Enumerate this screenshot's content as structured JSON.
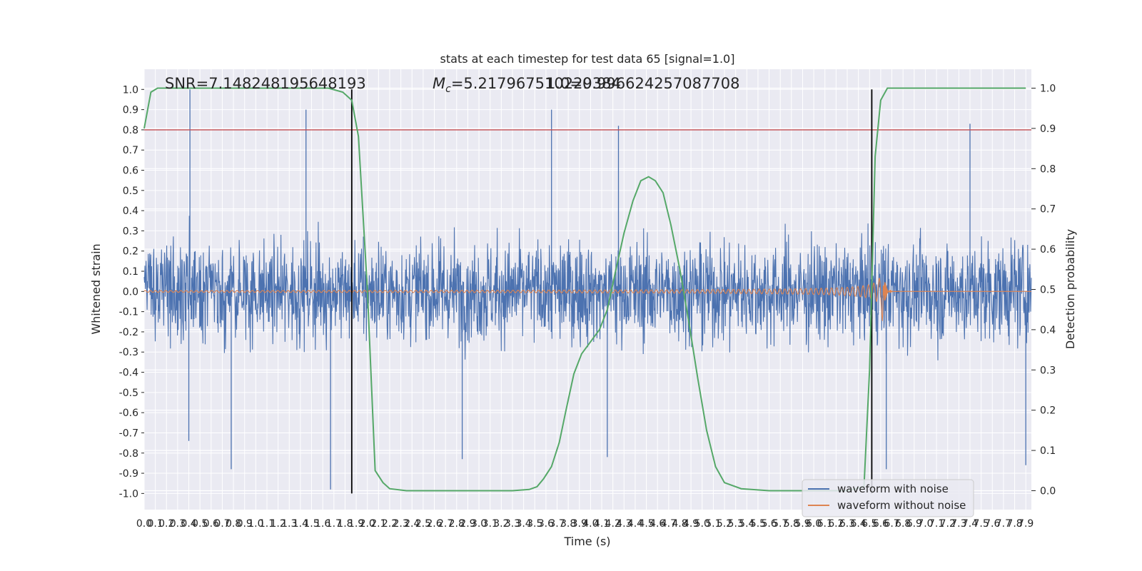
{
  "chart_data": {
    "type": "line",
    "title": "stats at each timestep for test data 65 [signal=1.0]",
    "annotations": {
      "snr": "SNR=7.148248195648193",
      "mc": "M",
      "mc_sub": "c",
      "mc_rest": "=5.217967510229384",
      "overlap": "1.0=0.996624257087708"
    },
    "xlabel": "Time (s)",
    "ylabel_left": "Whitened strain",
    "ylabel_right": "Detection probability",
    "xlim": [
      0.0,
      7.95
    ],
    "ylim_left": [
      -1.08,
      1.1
    ],
    "ylim_right": [
      -0.047,
      1.047
    ],
    "x_ticks": [
      "0.0",
      "0.1",
      "0.2",
      "0.3",
      "0.4",
      "0.5",
      "0.6",
      "0.7",
      "0.8",
      "0.9",
      "1.0",
      "1.1",
      "1.2",
      "1.3",
      "1.4",
      "1.5",
      "1.6",
      "1.7",
      "1.8",
      "1.9",
      "2.0",
      "2.1",
      "2.2",
      "2.3",
      "2.4",
      "2.5",
      "2.6",
      "2.7",
      "2.8",
      "2.9",
      "3.0",
      "3.1",
      "3.2",
      "3.3",
      "3.4",
      "3.5",
      "3.6",
      "3.7",
      "3.8",
      "3.9",
      "4.0",
      "4.1",
      "4.2",
      "4.3",
      "4.4",
      "4.5",
      "4.6",
      "4.7",
      "4.8",
      "4.9",
      "5.0",
      "5.1",
      "5.2",
      "5.3",
      "5.4",
      "5.5",
      "5.6",
      "5.7",
      "5.8",
      "5.9",
      "6.0",
      "6.1",
      "6.2",
      "6.3",
      "6.4",
      "6.5",
      "6.6",
      "6.7",
      "6.8",
      "6.9",
      "7.0",
      "7.1",
      "7.2",
      "7.3",
      "7.4",
      "7.5",
      "7.6",
      "7.7",
      "7.8",
      "7.9"
    ],
    "y_ticks_left": [
      "-1.0",
      "-0.9",
      "-0.8",
      "-0.7",
      "-0.6",
      "-0.5",
      "-0.4",
      "-0.3",
      "-0.2",
      "-0.1",
      "0.0",
      "0.1",
      "0.2",
      "0.3",
      "0.4",
      "0.5",
      "0.6",
      "0.7",
      "0.8",
      "0.9",
      "1.0"
    ],
    "y_ticks_right": [
      "0.0",
      "0.1",
      "0.2",
      "0.3",
      "0.4",
      "0.5",
      "0.6",
      "0.7",
      "0.8",
      "0.9",
      "1.0"
    ],
    "threshold_strain": 0.8,
    "vertical_markers_s": [
      1.86,
      6.52
    ],
    "noise_spikes": [
      {
        "x": 0.41,
        "y": 1.0
      },
      {
        "x": 1.45,
        "y": 0.9
      },
      {
        "x": 1.67,
        "y": -0.98
      },
      {
        "x": 3.65,
        "y": 0.9
      },
      {
        "x": 4.25,
        "y": 0.82
      },
      {
        "x": 7.4,
        "y": 0.83
      },
      {
        "x": 0.4,
        "y": -0.74
      },
      {
        "x": 0.78,
        "y": -0.88
      },
      {
        "x": 2.85,
        "y": -0.83
      },
      {
        "x": 4.15,
        "y": -0.82
      },
      {
        "x": 6.65,
        "y": -0.88
      },
      {
        "x": 7.9,
        "y": -0.86
      }
    ],
    "probability_curve": {
      "x": [
        0.0,
        0.06,
        0.12,
        0.3,
        0.6,
        1.0,
        1.4,
        1.65,
        1.78,
        1.86,
        1.92,
        2.0,
        2.07,
        2.14,
        2.2,
        2.35,
        2.6,
        3.0,
        3.3,
        3.45,
        3.52,
        3.58,
        3.65,
        3.72,
        3.78,
        3.85,
        3.92,
        4.0,
        4.08,
        4.15,
        4.22,
        4.3,
        4.38,
        4.45,
        4.52,
        4.58,
        4.65,
        4.72,
        4.8,
        4.88,
        4.96,
        5.04,
        5.12,
        5.2,
        5.35,
        5.6,
        6.0,
        6.3,
        6.45,
        6.5,
        6.55,
        6.6,
        6.66,
        6.75,
        6.9,
        7.3,
        7.6,
        7.9
      ],
      "y": [
        0.9,
        0.99,
        1.0,
        1.0,
        1.0,
        1.0,
        1.0,
        1.0,
        0.99,
        0.97,
        0.88,
        0.5,
        0.05,
        0.02,
        0.005,
        0.0,
        0.0,
        0.0,
        0.0,
        0.003,
        0.01,
        0.03,
        0.06,
        0.12,
        0.2,
        0.29,
        0.34,
        0.37,
        0.4,
        0.45,
        0.54,
        0.64,
        0.72,
        0.77,
        0.78,
        0.77,
        0.74,
        0.66,
        0.55,
        0.42,
        0.28,
        0.15,
        0.06,
        0.02,
        0.005,
        0.0,
        0.0,
        0.0,
        0.01,
        0.3,
        0.83,
        0.97,
        1.0,
        1.0,
        1.0,
        1.0,
        1.0,
        1.0
      ]
    },
    "series": [
      {
        "name": "waveform with noise",
        "color": "#4c72b0"
      },
      {
        "name": "waveform without noise",
        "color": "#dd8452"
      }
    ],
    "probability_color": "#55a868",
    "threshold_color": "#c44e52",
    "grid": true,
    "legend_placement": "lower-right"
  }
}
